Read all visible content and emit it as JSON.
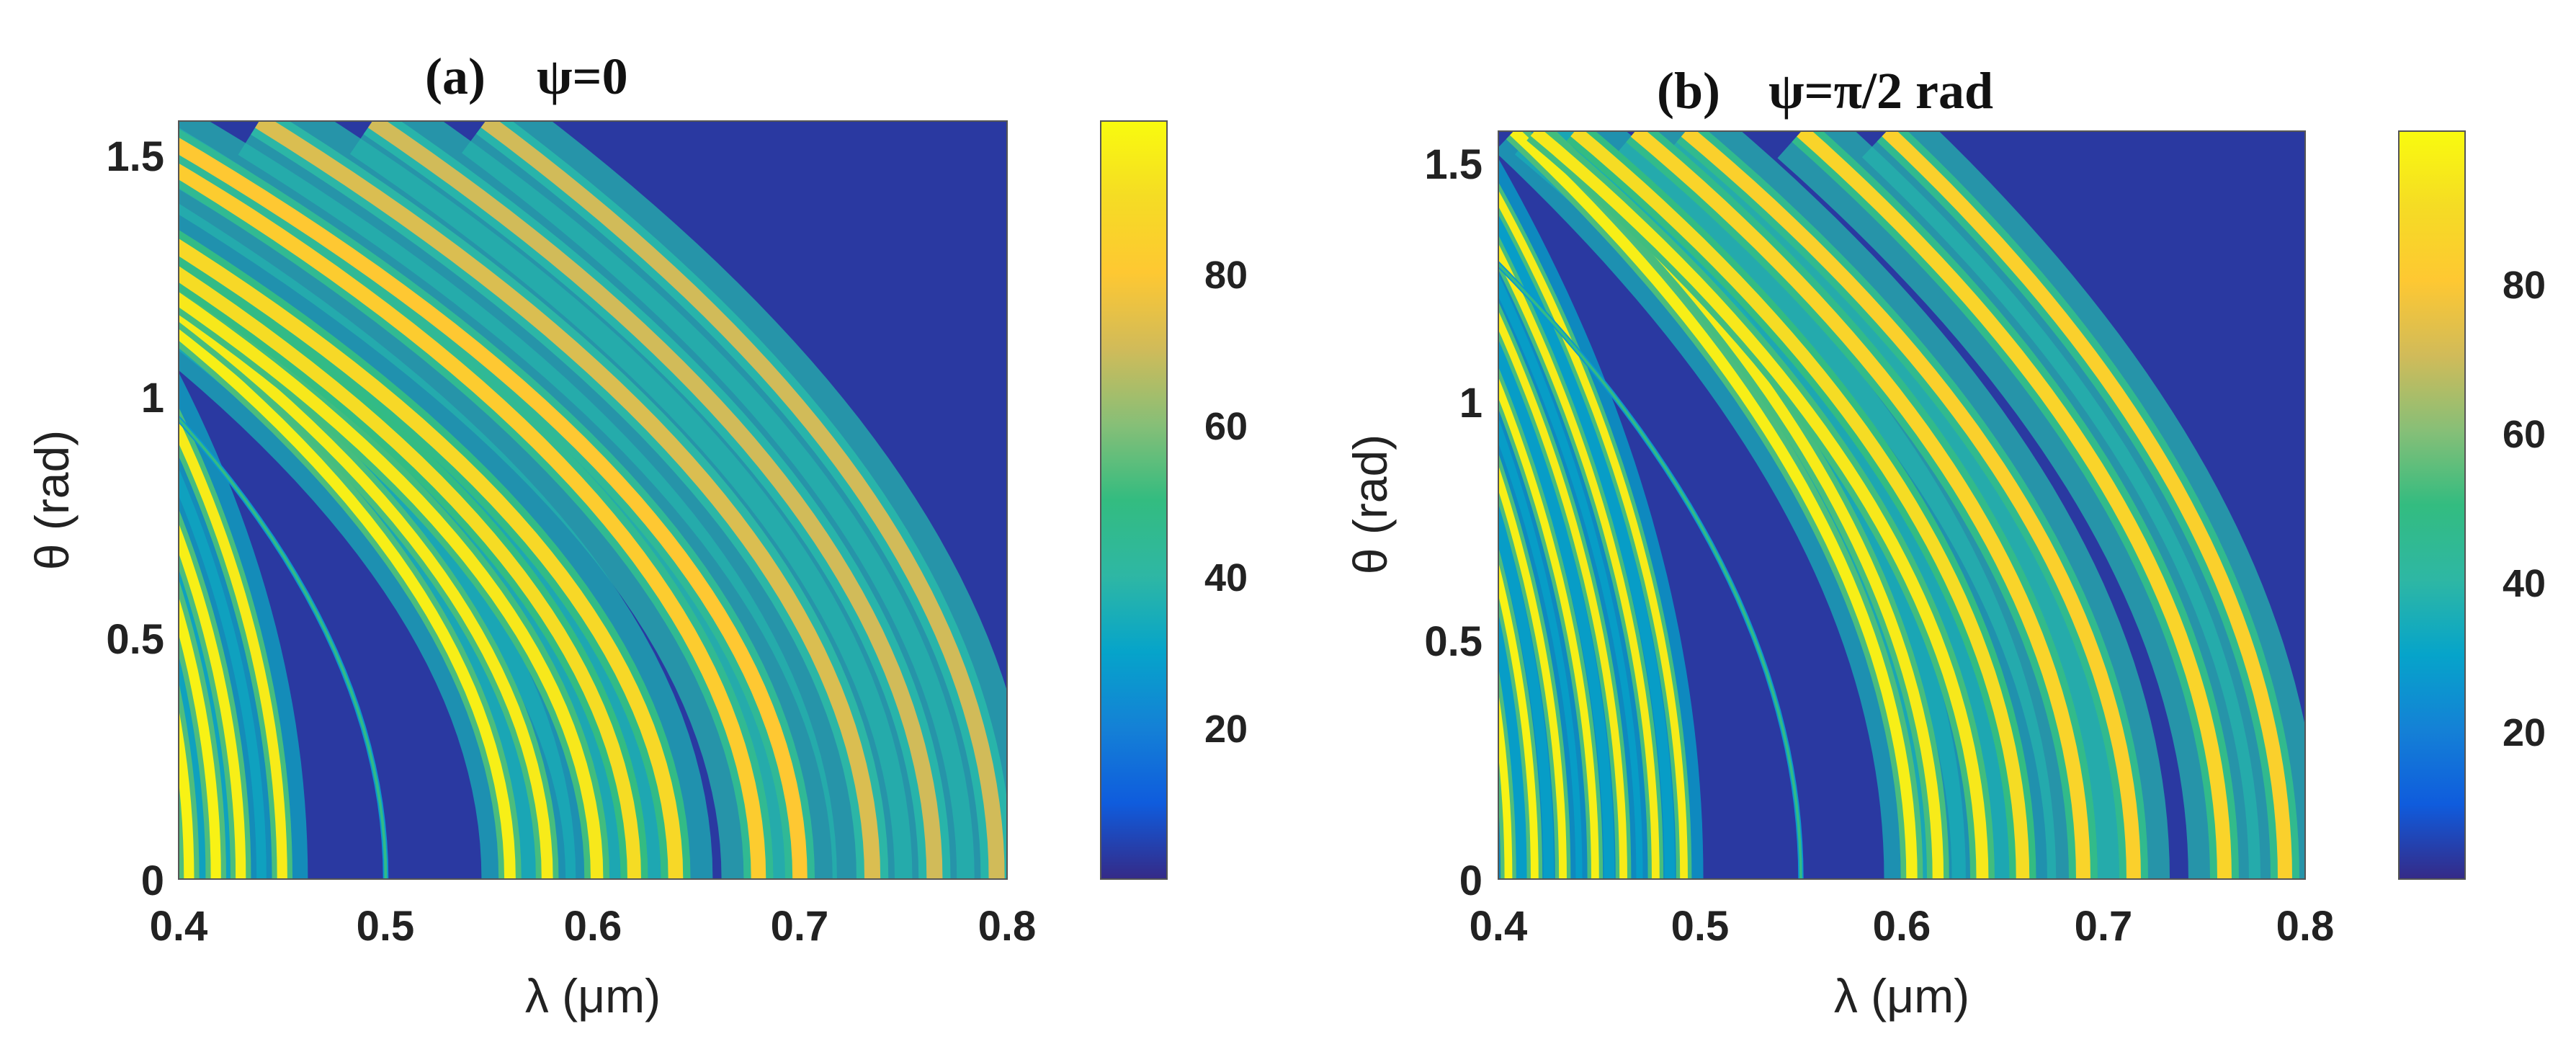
{
  "chart_data": [
    {
      "type": "heatmap",
      "panel_label": "(a)",
      "title": "ψ=0",
      "xlabel": "λ (μm)",
      "ylabel": "θ (rad)",
      "xlim": [
        0.4,
        0.8
      ],
      "ylim": [
        0,
        1.5708
      ],
      "xticks": [
        "0.4",
        "0.5",
        "0.6",
        "0.7",
        "0.8"
      ],
      "yticks": [
        "0",
        "0.5",
        "1",
        "1.5"
      ],
      "colorbar": {
        "ticks": [
          "20",
          "40",
          "60",
          "80"
        ],
        "range": [
          0,
          100
        ],
        "colormap": "parula"
      },
      "background_value": 3,
      "bands": [
        {
          "lambda0": 0.405,
          "k": 0.06,
          "width": 0.0045,
          "peak": 97,
          "halo": 32
        },
        {
          "lambda0": 0.418,
          "k": 0.06,
          "width": 0.0045,
          "peak": 97,
          "halo": 32
        },
        {
          "lambda0": 0.43,
          "k": 0.06,
          "width": 0.0045,
          "peak": 96,
          "halo": 32
        },
        {
          "lambda0": 0.45,
          "k": 0.058,
          "width": 0.0045,
          "peak": 95,
          "halo": 32
        },
        {
          "lambda0": 0.5,
          "k": 0.11,
          "width": 0.0012,
          "peak": 48,
          "halo": 0
        },
        {
          "lambda0": 0.56,
          "k": 0.125,
          "width": 0.005,
          "peak": 96,
          "halo": 35
        },
        {
          "lambda0": 0.578,
          "k": 0.13,
          "width": 0.005,
          "peak": 95,
          "halo": 35
        },
        {
          "lambda0": 0.602,
          "k": 0.14,
          "width": 0.0055,
          "peak": 94,
          "halo": 35
        },
        {
          "lambda0": 0.62,
          "k": 0.14,
          "width": 0.006,
          "peak": 90,
          "halo": 36
        },
        {
          "lambda0": 0.64,
          "k": 0.14,
          "width": 0.0065,
          "peak": 88,
          "halo": 36
        },
        {
          "lambda0": 0.68,
          "k": 0.13,
          "width": 0.0065,
          "peak": 82,
          "halo": 38
        },
        {
          "lambda0": 0.7,
          "k": 0.13,
          "width": 0.0065,
          "peak": 80,
          "halo": 38
        },
        {
          "lambda0": 0.735,
          "k": 0.12,
          "width": 0.007,
          "peak": 72,
          "halo": 38
        },
        {
          "lambda0": 0.765,
          "k": 0.11,
          "width": 0.007,
          "peak": 70,
          "halo": 38
        },
        {
          "lambda0": 0.795,
          "k": 0.1,
          "width": 0.007,
          "peak": 70,
          "halo": 38
        }
      ]
    },
    {
      "type": "heatmap",
      "panel_label": "(b)",
      "title": "ψ=π/2 rad",
      "xlabel": "λ (μm)",
      "ylabel": "θ (rad)",
      "xlim": [
        0.4,
        0.8
      ],
      "ylim": [
        0,
        1.5708
      ],
      "xticks": [
        "0.4",
        "0.5",
        "0.6",
        "0.7",
        "0.8"
      ],
      "yticks": [
        "0",
        "0.5",
        "1",
        "1.5"
      ],
      "colorbar": {
        "ticks": [
          "20",
          "40",
          "60",
          "80"
        ],
        "range": [
          0,
          100
        ],
        "colormap": "parula"
      },
      "background_value": 3,
      "bands": [
        {
          "lambda0": 0.405,
          "k": 0.045,
          "width": 0.0035,
          "peak": 97,
          "halo": 30
        },
        {
          "lambda0": 0.418,
          "k": 0.045,
          "width": 0.0035,
          "peak": 97,
          "halo": 30
        },
        {
          "lambda0": 0.432,
          "k": 0.045,
          "width": 0.0035,
          "peak": 96,
          "halo": 30
        },
        {
          "lambda0": 0.448,
          "k": 0.045,
          "width": 0.0035,
          "peak": 96,
          "halo": 30
        },
        {
          "lambda0": 0.462,
          "k": 0.045,
          "width": 0.0035,
          "peak": 95,
          "halo": 30
        },
        {
          "lambda0": 0.478,
          "k": 0.045,
          "width": 0.0035,
          "peak": 95,
          "halo": 30
        },
        {
          "lambda0": 0.492,
          "k": 0.045,
          "width": 0.0035,
          "peak": 95,
          "halo": 30
        },
        {
          "lambda0": 0.55,
          "k": 0.09,
          "width": 0.0012,
          "peak": 48,
          "halo": 0
        },
        {
          "lambda0": 0.605,
          "k": 0.08,
          "width": 0.005,
          "peak": 96,
          "halo": 35
        },
        {
          "lambda0": 0.618,
          "k": 0.08,
          "width": 0.005,
          "peak": 95,
          "halo": 35
        },
        {
          "lambda0": 0.64,
          "k": 0.09,
          "width": 0.0055,
          "peak": 94,
          "halo": 35
        },
        {
          "lambda0": 0.66,
          "k": 0.09,
          "width": 0.006,
          "peak": 90,
          "halo": 36
        },
        {
          "lambda0": 0.69,
          "k": 0.09,
          "width": 0.0065,
          "peak": 86,
          "halo": 38
        },
        {
          "lambda0": 0.715,
          "k": 0.09,
          "width": 0.0065,
          "peak": 84,
          "halo": 38
        },
        {
          "lambda0": 0.76,
          "k": 0.085,
          "width": 0.0065,
          "peak": 86,
          "halo": 38
        },
        {
          "lambda0": 0.79,
          "k": 0.08,
          "width": 0.0065,
          "peak": 84,
          "halo": 38
        }
      ]
    }
  ]
}
